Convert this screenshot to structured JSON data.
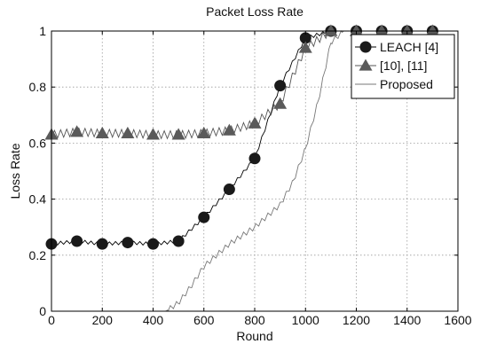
{
  "chart_data": {
    "type": "line",
    "title": "Packet Loss Rate",
    "xlabel": "Round",
    "ylabel": "Loss Rate",
    "xlim": [
      0,
      1600
    ],
    "ylim": [
      0,
      1
    ],
    "xticks": [
      0,
      200,
      400,
      600,
      800,
      1000,
      1200,
      1400,
      1600
    ],
    "yticks": [
      0,
      0.2,
      0.4,
      0.6,
      0.8,
      1
    ],
    "xtick_labels": [
      "0",
      "200",
      "400",
      "600",
      "800",
      "1000",
      "1200",
      "1400",
      "1600"
    ],
    "ytick_labels": [
      "0",
      "0.2",
      "0.4",
      "0.6",
      "0.8",
      "1"
    ],
    "grid": true,
    "legend_position": "top-right",
    "series": [
      {
        "name": "LEACH [4]",
        "marker": "circle",
        "color": "#000000",
        "x": [
          0,
          100,
          200,
          300,
          400,
          500,
          600,
          700,
          800,
          900,
          1000,
          1100,
          1200,
          1300,
          1400,
          1500
        ],
        "y": [
          0.24,
          0.25,
          0.24,
          0.245,
          0.24,
          0.25,
          0.335,
          0.435,
          0.545,
          0.805,
          0.975,
          1.0,
          1.0,
          1.0,
          1.0,
          1.0
        ]
      },
      {
        "name": "[10], [11]",
        "marker": "triangle",
        "color": "#555555",
        "x": [
          0,
          100,
          200,
          300,
          400,
          500,
          600,
          700,
          800,
          900,
          1000,
          1100,
          1200,
          1300,
          1400,
          1500
        ],
        "y": [
          0.63,
          0.64,
          0.635,
          0.635,
          0.63,
          0.63,
          0.635,
          0.645,
          0.67,
          0.74,
          0.94,
          1.0,
          1.0,
          1.0,
          1.0,
          1.0
        ]
      },
      {
        "name": "Proposed",
        "marker": "none",
        "color": "#777777",
        "x": [
          0,
          450,
          500,
          550,
          600,
          650,
          700,
          750,
          800,
          850,
          900,
          950,
          1000,
          1050,
          1100,
          1150,
          1200,
          1300,
          1400,
          1500
        ],
        "y": [
          0,
          0,
          0.03,
          0.09,
          0.16,
          0.2,
          0.24,
          0.27,
          0.3,
          0.34,
          0.38,
          0.46,
          0.58,
          0.75,
          0.96,
          1.0,
          1.0,
          1.0,
          1.0,
          1.0
        ]
      }
    ]
  }
}
